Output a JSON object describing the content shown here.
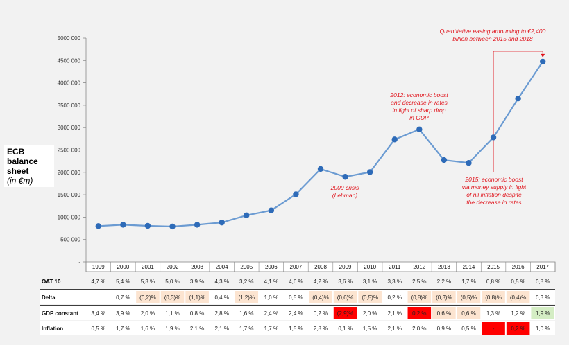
{
  "ylabel": {
    "line1": "ECB",
    "line2": "balance",
    "line3": "sheet",
    "unit": "(in €m)"
  },
  "chart_data": {
    "type": "line",
    "title": "",
    "xlabel": "",
    "ylabel": "ECB balance sheet (in €m)",
    "ylim": [
      0,
      5000000
    ],
    "yticks": [
      "-",
      "500 000",
      "1000 000",
      "1500 000",
      "2000 000",
      "2500 000",
      "3000 000",
      "3500 000",
      "4000 000",
      "4500 000",
      "5000 000"
    ],
    "categories": [
      "1999",
      "2000",
      "2001",
      "2002",
      "2003",
      "2004",
      "2005",
      "2006",
      "2007",
      "2008",
      "2009",
      "2010",
      "2011",
      "2012",
      "2013",
      "2014",
      "2015",
      "2016",
      "2017"
    ],
    "series": [
      {
        "values": [
          800000,
          830000,
          805000,
          790000,
          830000,
          880000,
          1040000,
          1150000,
          1510000,
          2075000,
          1900000,
          2005000,
          2735000,
          2960000,
          2275000,
          2210000,
          2780000,
          3650000,
          4475000
        ]
      }
    ],
    "colors": {
      "line": "#6b9bd2",
      "marker": "#2e6bb8",
      "annotation": "#e0141c"
    },
    "annotations": [
      {
        "lines": [
          "Quantitative easing amounting to €2,400",
          "billion  between 2015 and 2018"
        ]
      },
      {
        "lines": [
          "2012: economic boost",
          "and decrease in rates",
          "in light of sharp drop",
          "in GDP"
        ]
      },
      {
        "lines": [
          "2009 crisis",
          "(Lehman)"
        ]
      },
      {
        "lines": [
          "2015: economic boost",
          "via money supply in light",
          "of nil inflation despite",
          "the decrease in rates"
        ]
      }
    ]
  },
  "table": {
    "cell_colors": {
      "none": "#ffffff",
      "neg": "#fce4d0",
      "red": "#ff0000",
      "green": "#d4edc4",
      "plain": "#f2f2f2"
    },
    "rows": [
      {
        "label": "OAT 10",
        "kind": "plain",
        "cells": [
          [
            "4,7 %",
            "plain"
          ],
          [
            "5,4 %",
            "plain"
          ],
          [
            "5,3 %",
            "plain"
          ],
          [
            "5,0 %",
            "plain"
          ],
          [
            "3,9 %",
            "plain"
          ],
          [
            "4,3 %",
            "plain"
          ],
          [
            "3,2 %",
            "plain"
          ],
          [
            "4,1 %",
            "plain"
          ],
          [
            "4,6 %",
            "plain"
          ],
          [
            "4,2 %",
            "plain"
          ],
          [
            "3,6 %",
            "plain"
          ],
          [
            "3,1 %",
            "plain"
          ],
          [
            "3,3 %",
            "plain"
          ],
          [
            "2,5 %",
            "plain"
          ],
          [
            "2,2 %",
            "plain"
          ],
          [
            "1,7 %",
            "plain"
          ],
          [
            "0,8 %",
            "plain"
          ],
          [
            "0,5 %",
            "plain"
          ],
          [
            "0,8 %",
            "plain"
          ]
        ]
      },
      {
        "label": "Delta",
        "kind": "white",
        "cells": [
          [
            "",
            "none"
          ],
          [
            "0,7 %",
            "none"
          ],
          [
            "(0,2)%",
            "neg"
          ],
          [
            "(0,3)%",
            "neg"
          ],
          [
            "(1,1)%",
            "neg"
          ],
          [
            "0,4 %",
            "none"
          ],
          [
            "(1,2)%",
            "neg"
          ],
          [
            "1,0 %",
            "none"
          ],
          [
            "0,5 %",
            "none"
          ],
          [
            "(0,4)%",
            "neg"
          ],
          [
            "(0,6)%",
            "neg"
          ],
          [
            "(0,5)%",
            "neg"
          ],
          [
            "0,2 %",
            "none"
          ],
          [
            "(0,8)%",
            "neg"
          ],
          [
            "(0,3)%",
            "neg"
          ],
          [
            "(0,5)%",
            "neg"
          ],
          [
            "(0,8)%",
            "neg"
          ],
          [
            "(0,4)%",
            "neg"
          ],
          [
            "0,3 %",
            "none"
          ]
        ]
      },
      {
        "label": "GDP constant",
        "kind": "white",
        "cells": [
          [
            "3,4 %",
            "none"
          ],
          [
            "3,9 %",
            "none"
          ],
          [
            "2,0 %",
            "none"
          ],
          [
            "1,1 %",
            "none"
          ],
          [
            "0,8 %",
            "none"
          ],
          [
            "2,8 %",
            "none"
          ],
          [
            "1,6 %",
            "none"
          ],
          [
            "2,4 %",
            "none"
          ],
          [
            "2,4 %",
            "none"
          ],
          [
            "0,2 %",
            "none"
          ],
          [
            "(2,9)%",
            "red"
          ],
          [
            "2,0 %",
            "none"
          ],
          [
            "2,1 %",
            "none"
          ],
          [
            "0,2 %",
            "red"
          ],
          [
            "0,6 %",
            "neg"
          ],
          [
            "0,6 %",
            "neg"
          ],
          [
            "1,3 %",
            "none"
          ],
          [
            "1,2 %",
            "none"
          ],
          [
            "1,9 %",
            "green"
          ]
        ]
      },
      {
        "label": "Inflation",
        "kind": "white",
        "cells": [
          [
            "0,5 %",
            "none"
          ],
          [
            "1,7 %",
            "none"
          ],
          [
            "1,6 %",
            "none"
          ],
          [
            "1,9 %",
            "none"
          ],
          [
            "2,1 %",
            "none"
          ],
          [
            "2,1 %",
            "none"
          ],
          [
            "1,7 %",
            "none"
          ],
          [
            "1,7 %",
            "none"
          ],
          [
            "1,5 %",
            "none"
          ],
          [
            "2,8 %",
            "none"
          ],
          [
            "0,1 %",
            "none"
          ],
          [
            "1,5 %",
            "none"
          ],
          [
            "2,1 %",
            "none"
          ],
          [
            "2,0 %",
            "none"
          ],
          [
            "0,9 %",
            "none"
          ],
          [
            "0,5 %",
            "none"
          ],
          [
            "-",
            "red"
          ],
          [
            "0,2 %",
            "red"
          ],
          [
            "1,0 %",
            "none"
          ]
        ]
      }
    ]
  }
}
